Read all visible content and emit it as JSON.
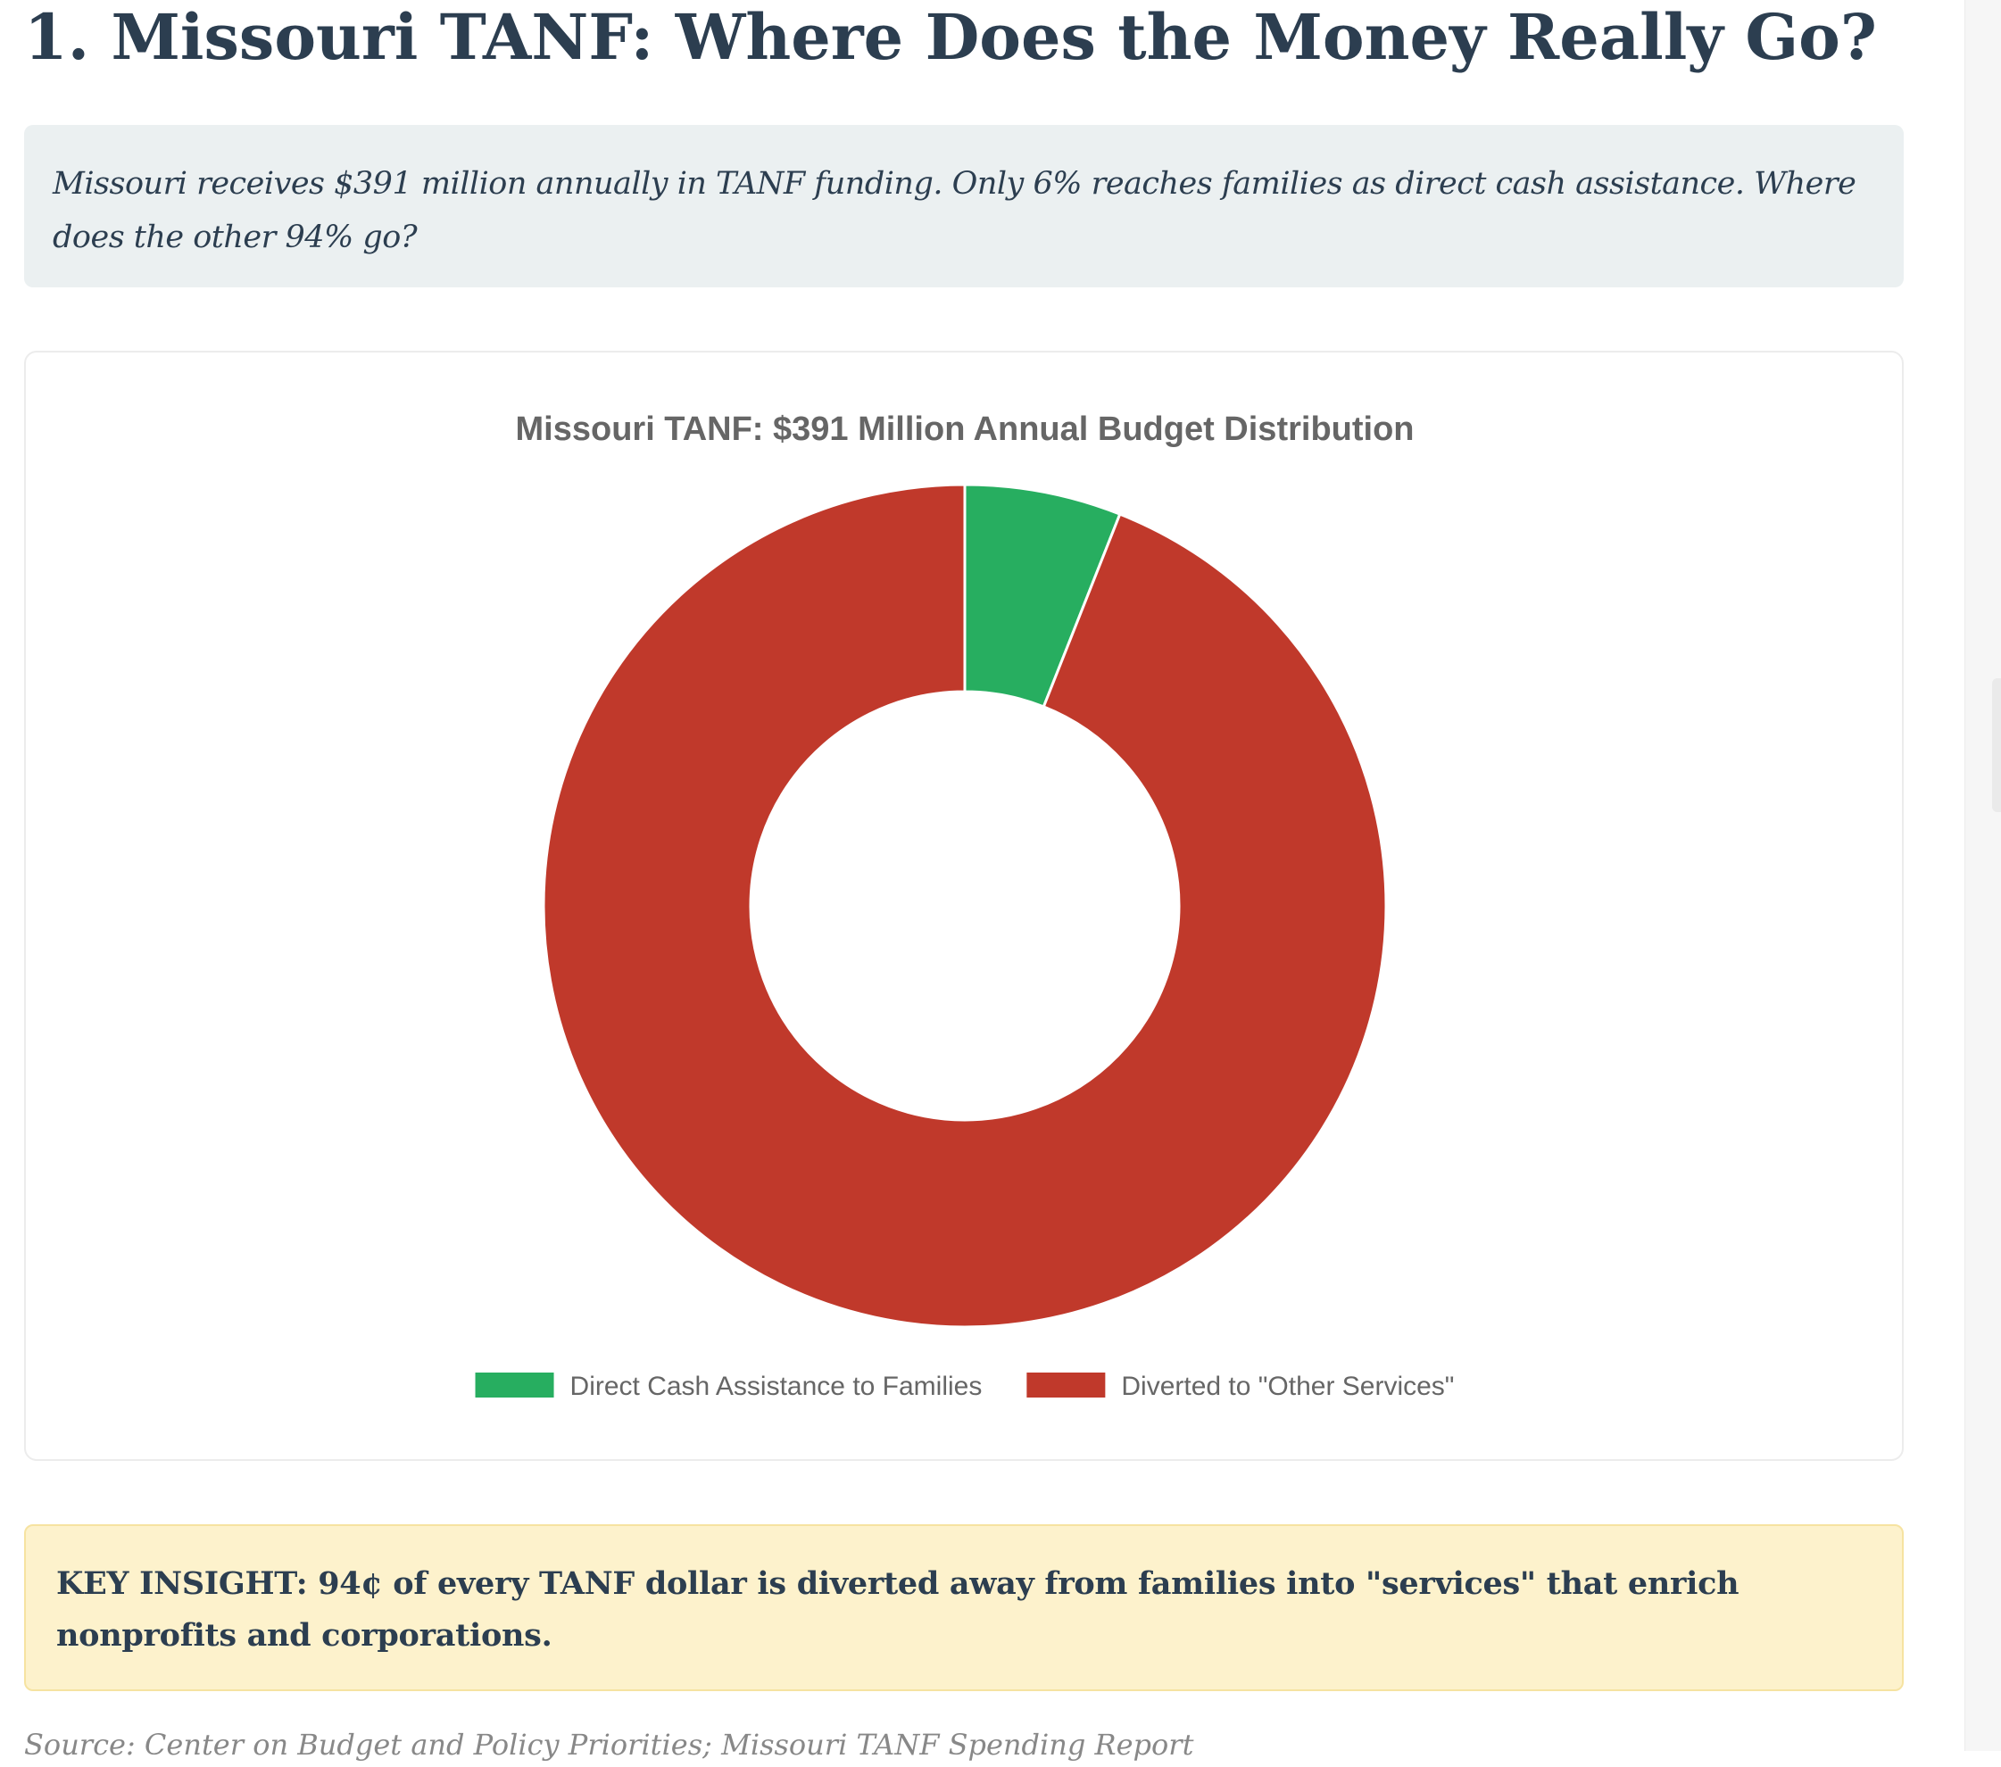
{
  "page": {
    "title": "1. Missouri TANF: Where Does the Money Really Go?",
    "intro": "Missouri receives $391 million annually in TANF funding. Only 6% reaches families as direct cash assistance. Where does the other 94% go?",
    "key_insight": "KEY INSIGHT: 94¢ of every TANF dollar is diverted away from families into \"services\" that enrich nonprofits and corporations.",
    "source": "Source: Center on Budget and Policy Priorities; Missouri TANF Spending Report"
  },
  "colors": {
    "direct_cash": "#27ae60",
    "diverted": "#c0392b",
    "title_text": "#2c3e50",
    "intro_bg": "#ebf0f1",
    "insight_bg": "#fdf2cc"
  },
  "chart_data": {
    "type": "pie",
    "variant": "doughnut",
    "title": "Missouri TANF: $391 Million Annual Budget Distribution",
    "categories": [
      "Direct Cash Assistance to Families",
      "Diverted to \"Other Services\""
    ],
    "values": [
      6,
      94
    ],
    "unit": "%",
    "colors": [
      "#27ae60",
      "#c0392b"
    ],
    "legend_position": "bottom"
  }
}
